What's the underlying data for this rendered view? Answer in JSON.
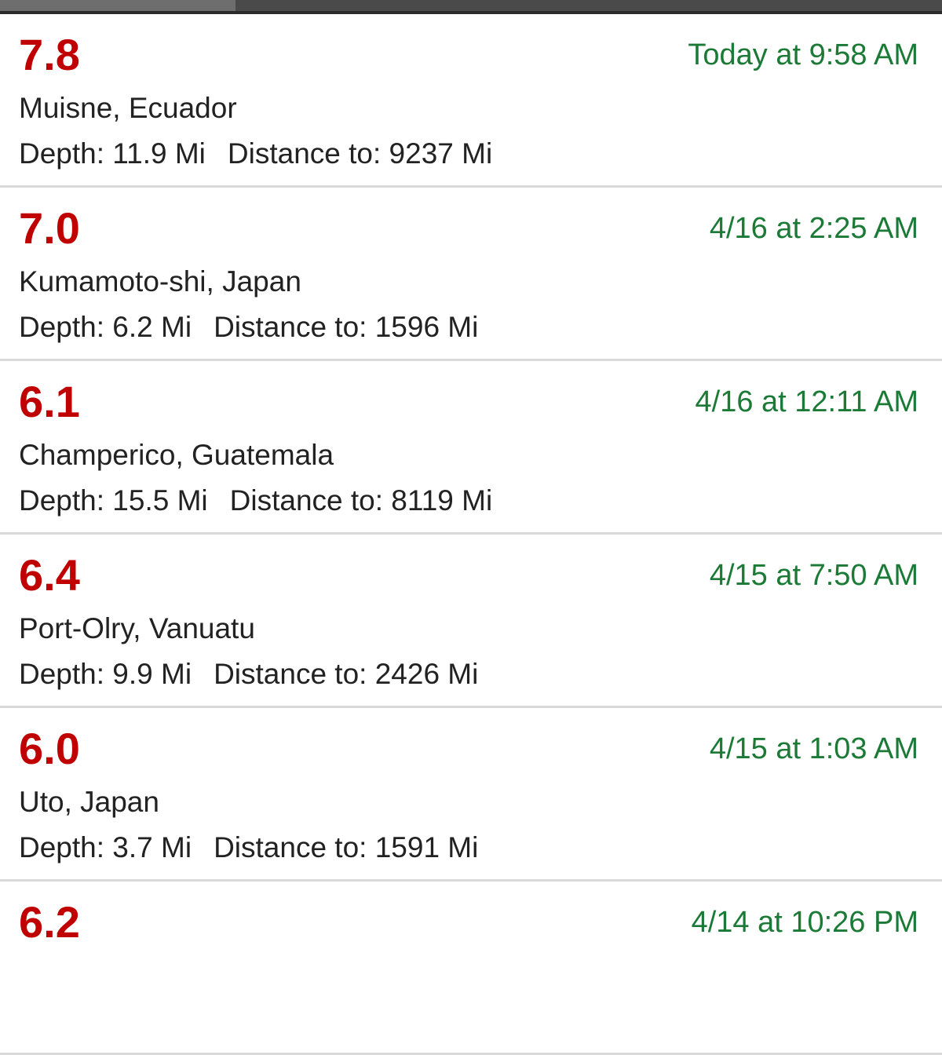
{
  "colors": {
    "magnitude": "#c00000",
    "time": "#1b7a36",
    "text": "#222222",
    "divider": "#d9d9d9"
  },
  "quakes": [
    {
      "magnitude": "7.8",
      "time": "Today at 9:58 AM",
      "place": "Muisne, Ecuador",
      "depth": "Depth: 11.9 Mi",
      "distance": "Distance to: 9237 Mi"
    },
    {
      "magnitude": "7.0",
      "time": "4/16 at 2:25 AM",
      "place": "Kumamoto-shi, Japan",
      "depth": "Depth: 6.2 Mi",
      "distance": "Distance to: 1596 Mi"
    },
    {
      "magnitude": "6.1",
      "time": "4/16 at 12:11 AM",
      "place": "Champerico, Guatemala",
      "depth": "Depth: 15.5 Mi",
      "distance": "Distance to: 8119 Mi"
    },
    {
      "magnitude": "6.4",
      "time": "4/15 at 7:50 AM",
      "place": "Port-Olry, Vanuatu",
      "depth": "Depth: 9.9 Mi",
      "distance": "Distance to: 2426 Mi"
    },
    {
      "magnitude": "6.0",
      "time": "4/15 at 1:03 AM",
      "place": "Uto, Japan",
      "depth": "Depth: 3.7 Mi",
      "distance": "Distance to: 1591 Mi"
    },
    {
      "magnitude": "6.2",
      "time": "4/14 at 10:26 PM"
    }
  ]
}
